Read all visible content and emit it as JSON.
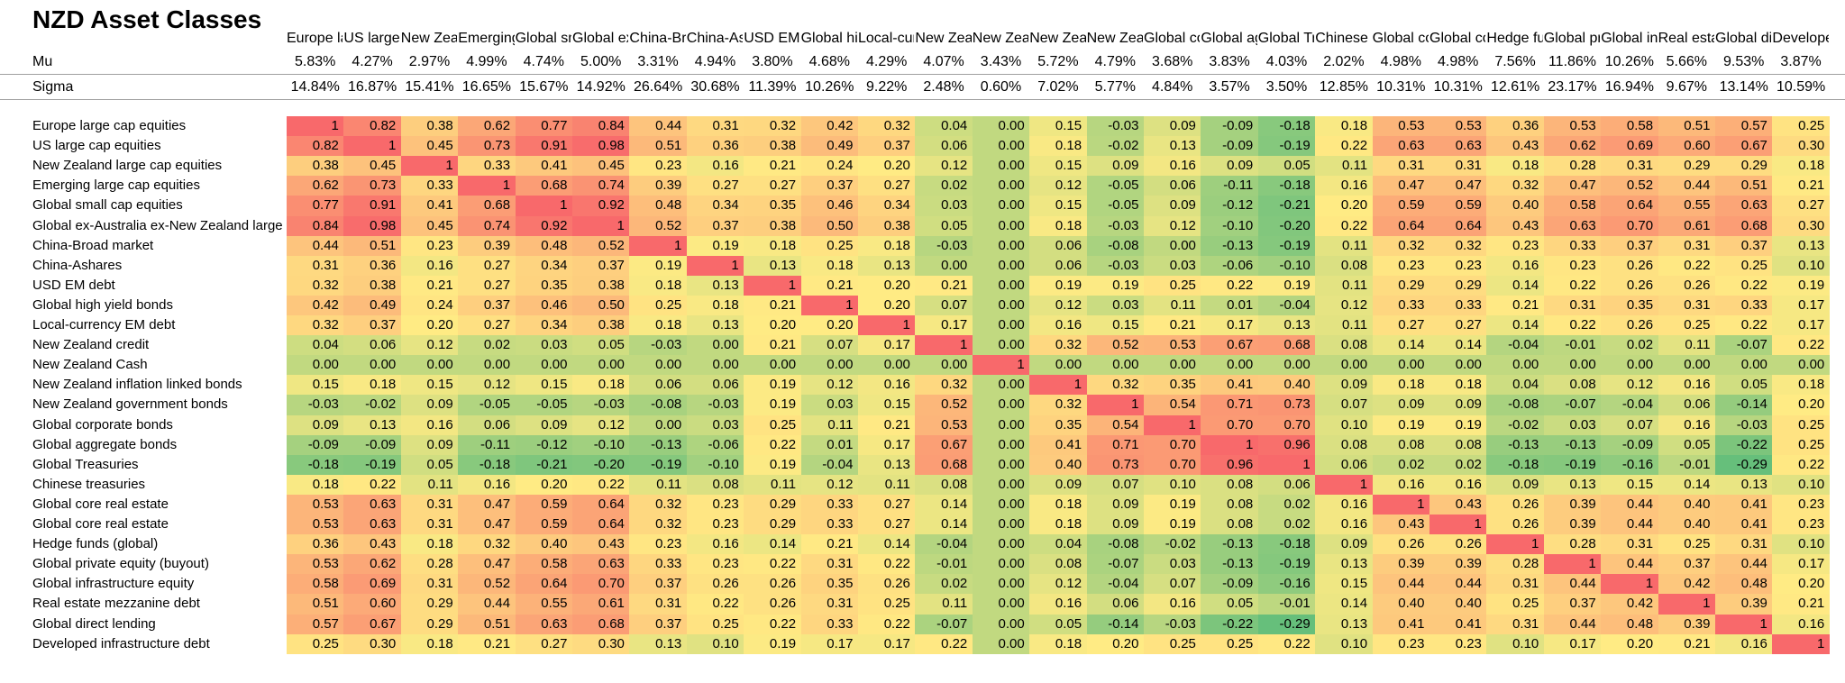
{
  "title": "NZD Asset Classes",
  "row_labels": {
    "mu": "Mu",
    "sigma": "Sigma"
  },
  "columns": [
    {
      "header": "Europe large cap equities",
      "mu": "5.83%",
      "sigma": "14.84%"
    },
    {
      "header": "US large cap equities",
      "mu": "4.27%",
      "sigma": "16.87%"
    },
    {
      "header": "New Zealand large cap equities",
      "mu": "2.97%",
      "sigma": "15.41%"
    },
    {
      "header": "Emerging large cap equities",
      "mu": "4.99%",
      "sigma": "16.65%"
    },
    {
      "header": "Global small cap equities",
      "mu": "4.74%",
      "sigma": "15.67%"
    },
    {
      "header": "Global ex-Australia ex-New Zealand large cap equities",
      "mu": "5.00%",
      "sigma": "14.92%"
    },
    {
      "header": "China-Broad market",
      "mu": "3.31%",
      "sigma": "26.64%"
    },
    {
      "header": "China-Ashares",
      "mu": "4.94%",
      "sigma": "30.68%"
    },
    {
      "header": "USD EM debt",
      "mu": "3.80%",
      "sigma": "11.39%"
    },
    {
      "header": "Global high yield bonds",
      "mu": "4.68%",
      "sigma": "10.26%"
    },
    {
      "header": "Local-currency EM debt",
      "mu": "4.29%",
      "sigma": "9.22%"
    },
    {
      "header": "New Zealand credit",
      "mu": "4.07%",
      "sigma": "2.48%"
    },
    {
      "header": "New Zealand Cash",
      "mu": "3.43%",
      "sigma": "0.60%"
    },
    {
      "header": "New Zealand inflation linked bonds",
      "mu": "5.72%",
      "sigma": "7.02%"
    },
    {
      "header": "New Zealand government bonds",
      "mu": "4.79%",
      "sigma": "5.77%"
    },
    {
      "header": "Global corporate bonds",
      "mu": "3.68%",
      "sigma": "4.84%"
    },
    {
      "header": "Global aggregate bonds",
      "mu": "3.83%",
      "sigma": "3.57%"
    },
    {
      "header": "Global Treasuries",
      "mu": "4.03%",
      "sigma": "3.50%"
    },
    {
      "header": "Chinese treasuries",
      "mu": "2.02%",
      "sigma": "12.85%"
    },
    {
      "header": "Global core real estate",
      "mu": "4.98%",
      "sigma": "10.31%"
    },
    {
      "header": "Global core real estate",
      "mu": "4.98%",
      "sigma": "10.31%"
    },
    {
      "header": "Hedge funds (global)",
      "mu": "7.56%",
      "sigma": "12.61%"
    },
    {
      "header": "Global private equity (buyout)",
      "mu": "11.86%",
      "sigma": "23.17%"
    },
    {
      "header": "Global infrastructure equity",
      "mu": "10.26%",
      "sigma": "16.94%"
    },
    {
      "header": "Real estate mezzanine debt",
      "mu": "5.66%",
      "sigma": "9.67%"
    },
    {
      "header": "Global direct lending",
      "mu": "9.53%",
      "sigma": "13.14%"
    },
    {
      "header": "Developed infrastructure debt",
      "mu": "3.87%",
      "sigma": "10.59%"
    }
  ],
  "matrix": [
    [
      "1",
      "0.82",
      "0.38",
      "0.62",
      "0.77",
      "0.84",
      "0.44",
      "0.31",
      "0.32",
      "0.42",
      "0.32",
      "0.04",
      "0.00",
      "0.15",
      "-0.03",
      "0.09",
      "-0.09",
      "-0.18",
      "0.18",
      "0.53",
      "0.53",
      "0.36",
      "0.53",
      "0.58",
      "0.51",
      "0.57",
      "0.25"
    ],
    [
      "0.82",
      "1",
      "0.45",
      "0.73",
      "0.91",
      "0.98",
      "0.51",
      "0.36",
      "0.38",
      "0.49",
      "0.37",
      "0.06",
      "0.00",
      "0.18",
      "-0.02",
      "0.13",
      "-0.09",
      "-0.19",
      "0.22",
      "0.63",
      "0.63",
      "0.43",
      "0.62",
      "0.69",
      "0.60",
      "0.67",
      "0.30"
    ],
    [
      "0.38",
      "0.45",
      "1",
      "0.33",
      "0.41",
      "0.45",
      "0.23",
      "0.16",
      "0.21",
      "0.24",
      "0.20",
      "0.12",
      "0.00",
      "0.15",
      "0.09",
      "0.16",
      "0.09",
      "0.05",
      "0.11",
      "0.31",
      "0.31",
      "0.18",
      "0.28",
      "0.31",
      "0.29",
      "0.29",
      "0.18"
    ],
    [
      "0.62",
      "0.73",
      "0.33",
      "1",
      "0.68",
      "0.74",
      "0.39",
      "0.27",
      "0.27",
      "0.37",
      "0.27",
      "0.02",
      "0.00",
      "0.12",
      "-0.05",
      "0.06",
      "-0.11",
      "-0.18",
      "0.16",
      "0.47",
      "0.47",
      "0.32",
      "0.47",
      "0.52",
      "0.44",
      "0.51",
      "0.21"
    ],
    [
      "0.77",
      "0.91",
      "0.41",
      "0.68",
      "1",
      "0.92",
      "0.48",
      "0.34",
      "0.35",
      "0.46",
      "0.34",
      "0.03",
      "0.00",
      "0.15",
      "-0.05",
      "0.09",
      "-0.12",
      "-0.21",
      "0.20",
      "0.59",
      "0.59",
      "0.40",
      "0.58",
      "0.64",
      "0.55",
      "0.63",
      "0.27"
    ],
    [
      "0.84",
      "0.98",
      "0.45",
      "0.74",
      "0.92",
      "1",
      "0.52",
      "0.37",
      "0.38",
      "0.50",
      "0.38",
      "0.05",
      "0.00",
      "0.18",
      "-0.03",
      "0.12",
      "-0.10",
      "-0.20",
      "0.22",
      "0.64",
      "0.64",
      "0.43",
      "0.63",
      "0.70",
      "0.61",
      "0.68",
      "0.30"
    ],
    [
      "0.44",
      "0.51",
      "0.23",
      "0.39",
      "0.48",
      "0.52",
      "1",
      "0.19",
      "0.18",
      "0.25",
      "0.18",
      "-0.03",
      "0.00",
      "0.06",
      "-0.08",
      "0.00",
      "-0.13",
      "-0.19",
      "0.11",
      "0.32",
      "0.32",
      "0.23",
      "0.33",
      "0.37",
      "0.31",
      "0.37",
      "0.13"
    ],
    [
      "0.31",
      "0.36",
      "0.16",
      "0.27",
      "0.34",
      "0.37",
      "0.19",
      "1",
      "0.13",
      "0.18",
      "0.13",
      "0.00",
      "0.00",
      "0.06",
      "-0.03",
      "0.03",
      "-0.06",
      "-0.10",
      "0.08",
      "0.23",
      "0.23",
      "0.16",
      "0.23",
      "0.26",
      "0.22",
      "0.25",
      "0.10"
    ],
    [
      "0.32",
      "0.38",
      "0.21",
      "0.27",
      "0.35",
      "0.38",
      "0.18",
      "0.13",
      "1",
      "0.21",
      "0.20",
      "0.21",
      "0.00",
      "0.19",
      "0.19",
      "0.25",
      "0.22",
      "0.19",
      "0.11",
      "0.29",
      "0.29",
      "0.14",
      "0.22",
      "0.26",
      "0.26",
      "0.22",
      "0.19"
    ],
    [
      "0.42",
      "0.49",
      "0.24",
      "0.37",
      "0.46",
      "0.50",
      "0.25",
      "0.18",
      "0.21",
      "1",
      "0.20",
      "0.07",
      "0.00",
      "0.12",
      "0.03",
      "0.11",
      "0.01",
      "-0.04",
      "0.12",
      "0.33",
      "0.33",
      "0.21",
      "0.31",
      "0.35",
      "0.31",
      "0.33",
      "0.17"
    ],
    [
      "0.32",
      "0.37",
      "0.20",
      "0.27",
      "0.34",
      "0.38",
      "0.18",
      "0.13",
      "0.20",
      "0.20",
      "1",
      "0.17",
      "0.00",
      "0.16",
      "0.15",
      "0.21",
      "0.17",
      "0.13",
      "0.11",
      "0.27",
      "0.27",
      "0.14",
      "0.22",
      "0.26",
      "0.25",
      "0.22",
      "0.17"
    ],
    [
      "0.04",
      "0.06",
      "0.12",
      "0.02",
      "0.03",
      "0.05",
      "-0.03",
      "0.00",
      "0.21",
      "0.07",
      "0.17",
      "1",
      "0.00",
      "0.32",
      "0.52",
      "0.53",
      "0.67",
      "0.68",
      "0.08",
      "0.14",
      "0.14",
      "-0.04",
      "-0.01",
      "0.02",
      "0.11",
      "-0.07",
      "0.22"
    ],
    [
      "0.00",
      "0.00",
      "0.00",
      "0.00",
      "0.00",
      "0.00",
      "0.00",
      "0.00",
      "0.00",
      "0.00",
      "0.00",
      "0.00",
      "1",
      "0.00",
      "0.00",
      "0.00",
      "0.00",
      "0.00",
      "0.00",
      "0.00",
      "0.00",
      "0.00",
      "0.00",
      "0.00",
      "0.00",
      "0.00",
      "0.00"
    ],
    [
      "0.15",
      "0.18",
      "0.15",
      "0.12",
      "0.15",
      "0.18",
      "0.06",
      "0.06",
      "0.19",
      "0.12",
      "0.16",
      "0.32",
      "0.00",
      "1",
      "0.32",
      "0.35",
      "0.41",
      "0.40",
      "0.09",
      "0.18",
      "0.18",
      "0.04",
      "0.08",
      "0.12",
      "0.16",
      "0.05",
      "0.18"
    ],
    [
      "-0.03",
      "-0.02",
      "0.09",
      "-0.05",
      "-0.05",
      "-0.03",
      "-0.08",
      "-0.03",
      "0.19",
      "0.03",
      "0.15",
      "0.52",
      "0.00",
      "0.32",
      "1",
      "0.54",
      "0.71",
      "0.73",
      "0.07",
      "0.09",
      "0.09",
      "-0.08",
      "-0.07",
      "-0.04",
      "0.06",
      "-0.14",
      "0.20"
    ],
    [
      "0.09",
      "0.13",
      "0.16",
      "0.06",
      "0.09",
      "0.12",
      "0.00",
      "0.03",
      "0.25",
      "0.11",
      "0.21",
      "0.53",
      "0.00",
      "0.35",
      "0.54",
      "1",
      "0.70",
      "0.70",
      "0.10",
      "0.19",
      "0.19",
      "-0.02",
      "0.03",
      "0.07",
      "0.16",
      "-0.03",
      "0.25"
    ],
    [
      "-0.09",
      "-0.09",
      "0.09",
      "-0.11",
      "-0.12",
      "-0.10",
      "-0.13",
      "-0.06",
      "0.22",
      "0.01",
      "0.17",
      "0.67",
      "0.00",
      "0.41",
      "0.71",
      "0.70",
      "1",
      "0.96",
      "0.08",
      "0.08",
      "0.08",
      "-0.13",
      "-0.13",
      "-0.09",
      "0.05",
      "-0.22",
      "0.25"
    ],
    [
      "-0.18",
      "-0.19",
      "0.05",
      "-0.18",
      "-0.21",
      "-0.20",
      "-0.19",
      "-0.10",
      "0.19",
      "-0.04",
      "0.13",
      "0.68",
      "0.00",
      "0.40",
      "0.73",
      "0.70",
      "0.96",
      "1",
      "0.06",
      "0.02",
      "0.02",
      "-0.18",
      "-0.19",
      "-0.16",
      "-0.01",
      "-0.29",
      "0.22"
    ],
    [
      "0.18",
      "0.22",
      "0.11",
      "0.16",
      "0.20",
      "0.22",
      "0.11",
      "0.08",
      "0.11",
      "0.12",
      "0.11",
      "0.08",
      "0.00",
      "0.09",
      "0.07",
      "0.10",
      "0.08",
      "0.06",
      "1",
      "0.16",
      "0.16",
      "0.09",
      "0.13",
      "0.15",
      "0.14",
      "0.13",
      "0.10"
    ],
    [
      "0.53",
      "0.63",
      "0.31",
      "0.47",
      "0.59",
      "0.64",
      "0.32",
      "0.23",
      "0.29",
      "0.33",
      "0.27",
      "0.14",
      "0.00",
      "0.18",
      "0.09",
      "0.19",
      "0.08",
      "0.02",
      "0.16",
      "1",
      "0.43",
      "0.26",
      "0.39",
      "0.44",
      "0.40",
      "0.41",
      "0.23"
    ],
    [
      "0.53",
      "0.63",
      "0.31",
      "0.47",
      "0.59",
      "0.64",
      "0.32",
      "0.23",
      "0.29",
      "0.33",
      "0.27",
      "0.14",
      "0.00",
      "0.18",
      "0.09",
      "0.19",
      "0.08",
      "0.02",
      "0.16",
      "0.43",
      "1",
      "0.26",
      "0.39",
      "0.44",
      "0.40",
      "0.41",
      "0.23"
    ],
    [
      "0.36",
      "0.43",
      "0.18",
      "0.32",
      "0.40",
      "0.43",
      "0.23",
      "0.16",
      "0.14",
      "0.21",
      "0.14",
      "-0.04",
      "0.00",
      "0.04",
      "-0.08",
      "-0.02",
      "-0.13",
      "-0.18",
      "0.09",
      "0.26",
      "0.26",
      "1",
      "0.28",
      "0.31",
      "0.25",
      "0.31",
      "0.10"
    ],
    [
      "0.53",
      "0.62",
      "0.28",
      "0.47",
      "0.58",
      "0.63",
      "0.33",
      "0.23",
      "0.22",
      "0.31",
      "0.22",
      "-0.01",
      "0.00",
      "0.08",
      "-0.07",
      "0.03",
      "-0.13",
      "-0.19",
      "0.13",
      "0.39",
      "0.39",
      "0.28",
      "1",
      "0.44",
      "0.37",
      "0.44",
      "0.17"
    ],
    [
      "0.58",
      "0.69",
      "0.31",
      "0.52",
      "0.64",
      "0.70",
      "0.37",
      "0.26",
      "0.26",
      "0.35",
      "0.26",
      "0.02",
      "0.00",
      "0.12",
      "-0.04",
      "0.07",
      "-0.09",
      "-0.16",
      "0.15",
      "0.44",
      "0.44",
      "0.31",
      "0.44",
      "1",
      "0.42",
      "0.48",
      "0.20"
    ],
    [
      "0.51",
      "0.60",
      "0.29",
      "0.44",
      "0.55",
      "0.61",
      "0.31",
      "0.22",
      "0.26",
      "0.31",
      "0.25",
      "0.11",
      "0.00",
      "0.16",
      "0.06",
      "0.16",
      "0.05",
      "-0.01",
      "0.14",
      "0.40",
      "0.40",
      "0.25",
      "0.37",
      "0.42",
      "1",
      "0.39",
      "0.21"
    ],
    [
      "0.57",
      "0.67",
      "0.29",
      "0.51",
      "0.63",
      "0.68",
      "0.37",
      "0.25",
      "0.22",
      "0.33",
      "0.22",
      "-0.07",
      "0.00",
      "0.05",
      "-0.14",
      "-0.03",
      "-0.22",
      "-0.29",
      "0.13",
      "0.41",
      "0.41",
      "0.31",
      "0.44",
      "0.48",
      "0.39",
      "1",
      "0.16"
    ],
    [
      "0.25",
      "0.30",
      "0.18",
      "0.21",
      "0.27",
      "0.30",
      "0.13",
      "0.10",
      "0.19",
      "0.17",
      "0.17",
      "0.22",
      "0.00",
      "0.18",
      "0.20",
      "0.25",
      "0.25",
      "0.22",
      "0.10",
      "0.23",
      "0.23",
      "0.10",
      "0.17",
      "0.20",
      "0.21",
      "0.16",
      "1"
    ]
  ],
  "colors": {
    "high": "#f8696b",
    "mid": "#ffeb84",
    "low": "#63be7b",
    "rule": "#a0a0a0"
  }
}
